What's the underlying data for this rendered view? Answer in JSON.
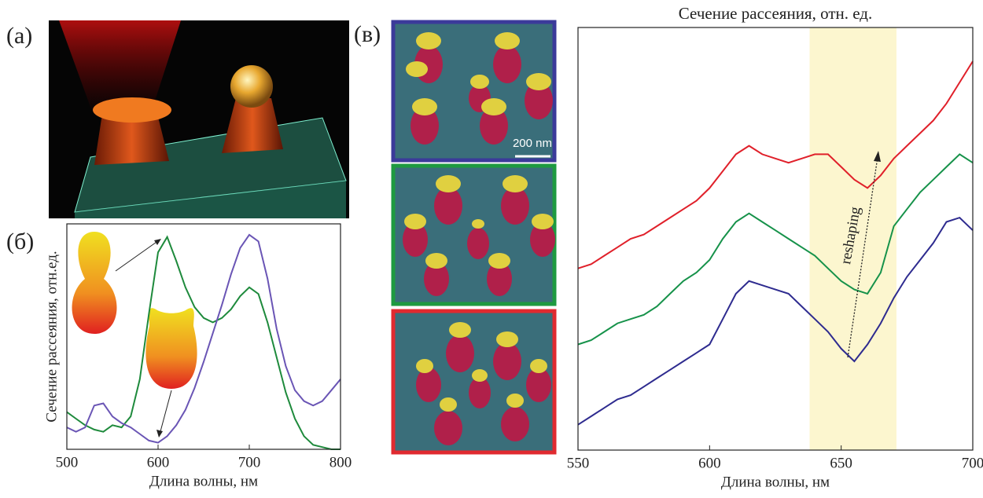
{
  "panel_labels": [
    "(а)",
    "(б)",
    "(в)"
  ],
  "scale_bar": "200 nm",
  "chart_data": [
    {
      "type": "line",
      "ylabel": "Сечение рассеяния, отн.ед.",
      "xlabel": "Длина волны, нм",
      "x": [
        500,
        510,
        520,
        530,
        540,
        550,
        560,
        570,
        580,
        590,
        600,
        610,
        620,
        630,
        640,
        650,
        660,
        670,
        680,
        690,
        700,
        710,
        720,
        730,
        740,
        750,
        760,
        770,
        780,
        790,
        800
      ],
      "xlim": [
        500,
        800
      ],
      "xticks": [
        500,
        600,
        700,
        800
      ],
      "ylim": [
        0,
        1.03
      ],
      "series": [
        {
          "color": "#1e8a3c",
          "values": [
            0.17,
            0.14,
            0.11,
            0.09,
            0.08,
            0.11,
            0.1,
            0.15,
            0.32,
            0.62,
            0.9,
            0.97,
            0.86,
            0.74,
            0.65,
            0.6,
            0.58,
            0.6,
            0.64,
            0.7,
            0.74,
            0.71,
            0.58,
            0.42,
            0.26,
            0.14,
            0.06,
            0.02,
            0.01,
            0,
            0
          ]
        },
        {
          "color": "#6a55b5",
          "values": [
            0.1,
            0.08,
            0.1,
            0.2,
            0.21,
            0.15,
            0.12,
            0.1,
            0.07,
            0.04,
            0.03,
            0.06,
            0.11,
            0.18,
            0.28,
            0.4,
            0.53,
            0.66,
            0.8,
            0.92,
            0.98,
            0.95,
            0.78,
            0.55,
            0.38,
            0.27,
            0.22,
            0.2,
            0.22,
            0.27,
            0.32
          ]
        }
      ]
    },
    {
      "type": "line",
      "title": "Сечение рассеяния, отн. ед.",
      "xlabel": "Длина волны, нм",
      "annotation": "reshaping",
      "highlight": [
        638,
        671
      ],
      "highlight_color": "#fcf6cf",
      "x": [
        550,
        555,
        560,
        565,
        570,
        575,
        580,
        585,
        590,
        595,
        600,
        605,
        610,
        615,
        620,
        625,
        630,
        635,
        640,
        645,
        650,
        655,
        660,
        665,
        670,
        675,
        680,
        685,
        690,
        695,
        700
      ],
      "xlim": [
        550,
        700
      ],
      "xticks": [
        550,
        600,
        650,
        700
      ],
      "ylim": [
        0,
        1
      ],
      "series": [
        {
          "color": "#e0202a",
          "values": [
            0.43,
            0.44,
            0.46,
            0.48,
            0.5,
            0.51,
            0.53,
            0.55,
            0.57,
            0.59,
            0.62,
            0.66,
            0.7,
            0.72,
            0.7,
            0.69,
            0.68,
            0.69,
            0.7,
            0.7,
            0.67,
            0.64,
            0.62,
            0.65,
            0.69,
            0.72,
            0.75,
            0.78,
            0.82,
            0.87,
            0.92
          ]
        },
        {
          "color": "#16924a",
          "values": [
            0.25,
            0.26,
            0.28,
            0.3,
            0.31,
            0.32,
            0.34,
            0.37,
            0.4,
            0.42,
            0.45,
            0.5,
            0.54,
            0.56,
            0.54,
            0.52,
            0.5,
            0.48,
            0.46,
            0.43,
            0.4,
            0.38,
            0.37,
            0.42,
            0.53,
            0.57,
            0.61,
            0.64,
            0.67,
            0.7,
            0.68
          ]
        },
        {
          "color": "#2e2b8f",
          "values": [
            0.06,
            0.08,
            0.1,
            0.12,
            0.13,
            0.15,
            0.17,
            0.19,
            0.21,
            0.23,
            0.25,
            0.31,
            0.37,
            0.4,
            0.39,
            0.38,
            0.37,
            0.34,
            0.31,
            0.28,
            0.24,
            0.21,
            0.25,
            0.3,
            0.36,
            0.41,
            0.45,
            0.49,
            0.54,
            0.55,
            0.52
          ]
        }
      ]
    }
  ]
}
